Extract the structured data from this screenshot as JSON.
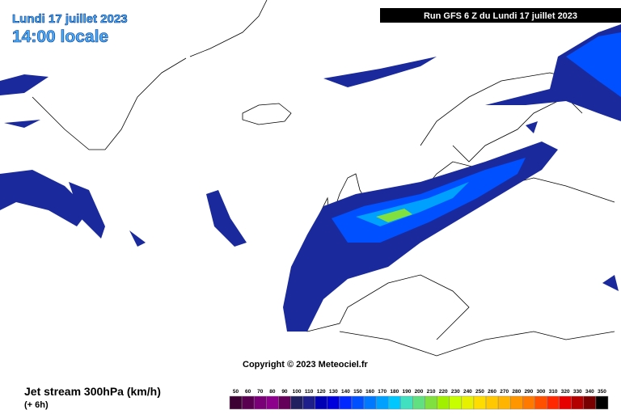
{
  "header": {
    "date": "Lundi 17 juillet 2023",
    "time": "14:00 locale",
    "run": "Run GFS 6 Z du Lundi 17 juillet 2023"
  },
  "copyright": "Copyright © 2023 Meteociel.fr",
  "legend": {
    "title": "Jet stream 300hPa (km/h)",
    "step": "(+ 6h)",
    "scale": [
      {
        "label": "50",
        "color": "#3c0032"
      },
      {
        "label": "60",
        "color": "#5a0050"
      },
      {
        "label": "70",
        "color": "#7a0078"
      },
      {
        "label": "80",
        "color": "#8c008c"
      },
      {
        "label": "90",
        "color": "#64005a"
      },
      {
        "label": "100",
        "color": "#202060"
      },
      {
        "label": "110",
        "color": "#1e1e8c"
      },
      {
        "label": "120",
        "color": "#0000b4"
      },
      {
        "label": "130",
        "color": "#0000dc"
      },
      {
        "label": "140",
        "color": "#0028ff"
      },
      {
        "label": "150",
        "color": "#0050ff"
      },
      {
        "label": "160",
        "color": "#0078ff"
      },
      {
        "label": "170",
        "color": "#00a0ff"
      },
      {
        "label": "180",
        "color": "#00c8ff"
      },
      {
        "label": "190",
        "color": "#40e0c0"
      },
      {
        "label": "200",
        "color": "#60e080"
      },
      {
        "label": "210",
        "color": "#80e040"
      },
      {
        "label": "220",
        "color": "#a0f000"
      },
      {
        "label": "230",
        "color": "#c8ff00"
      },
      {
        "label": "240",
        "color": "#e6f000"
      },
      {
        "label": "250",
        "color": "#ffdc00"
      },
      {
        "label": "260",
        "color": "#ffc800"
      },
      {
        "label": "270",
        "color": "#ffb400"
      },
      {
        "label": "280",
        "color": "#ff9600"
      },
      {
        "label": "290",
        "color": "#ff7800"
      },
      {
        "label": "300",
        "color": "#ff5000"
      },
      {
        "label": "310",
        "color": "#ff2800"
      },
      {
        "label": "320",
        "color": "#e60000"
      },
      {
        "label": "330",
        "color": "#b40000"
      },
      {
        "label": "340",
        "color": "#780000"
      },
      {
        "label": "350",
        "color": "#000000"
      }
    ]
  }
}
